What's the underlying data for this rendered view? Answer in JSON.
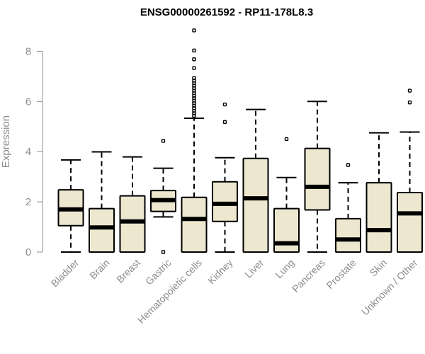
{
  "chart_data": {
    "type": "boxplot",
    "title": "ENSG00000261592 - RP11-178L8.3",
    "xlabel": "",
    "ylabel": "Expression",
    "ylim": [
      0,
      9
    ],
    "yticks": [
      "0",
      "2",
      "4",
      "6",
      "8"
    ],
    "grid": false,
    "box_color": "#ede7cf",
    "categories": [
      "Bladder",
      "Brain",
      "Breast",
      "Gastric",
      "Hematopoietic cells",
      "Kidney",
      "Liver",
      "Lung",
      "Pancreas",
      "Prostate",
      "Skin",
      "Unknown / Other"
    ],
    "series": [
      {
        "min": 0,
        "q1": 1.05,
        "median": 1.7,
        "q3": 2.48,
        "max": 3.67,
        "outliers": []
      },
      {
        "min": 0,
        "q1": 0,
        "median": 0.98,
        "q3": 1.73,
        "max": 3.99,
        "outliers": []
      },
      {
        "min": 0,
        "q1": 0,
        "median": 1.22,
        "q3": 2.24,
        "max": 3.79,
        "outliers": []
      },
      {
        "min": 1.4,
        "q1": 1.62,
        "median": 2.07,
        "q3": 2.45,
        "max": 3.34,
        "outliers": [
          0,
          4.43
        ]
      },
      {
        "min": 0,
        "q1": 0,
        "median": 1.32,
        "q3": 2.18,
        "max": 5.33,
        "outliers": [
          5.43,
          5.53,
          5.63,
          5.73,
          5.83,
          5.93,
          6.03,
          6.13,
          6.23,
          6.33,
          6.43,
          6.53,
          6.63,
          6.73,
          6.83,
          6.93,
          7.33,
          7.68,
          8.03,
          8.83
        ]
      },
      {
        "min": 0,
        "q1": 1.22,
        "median": 1.92,
        "q3": 2.8,
        "max": 3.76,
        "outliers": [
          5.18,
          5.88
        ]
      },
      {
        "min": 0,
        "q1": 0,
        "median": 2.14,
        "q3": 3.73,
        "max": 5.68,
        "outliers": []
      },
      {
        "min": 0,
        "q1": 0,
        "median": 0.35,
        "q3": 1.73,
        "max": 2.97,
        "outliers": [
          4.5
        ]
      },
      {
        "min": 0,
        "q1": 1.68,
        "median": 2.6,
        "q3": 4.13,
        "max": 6.0,
        "outliers": []
      },
      {
        "min": 0,
        "q1": 0,
        "median": 0.5,
        "q3": 1.33,
        "max": 2.76,
        "outliers": [
          3.47
        ]
      },
      {
        "min": 0,
        "q1": 0,
        "median": 0.87,
        "q3": 2.76,
        "max": 4.75,
        "outliers": []
      },
      {
        "min": 0,
        "q1": 0,
        "median": 1.54,
        "q3": 2.37,
        "max": 4.78,
        "outliers": [
          5.96,
          6.43
        ]
      }
    ]
  }
}
